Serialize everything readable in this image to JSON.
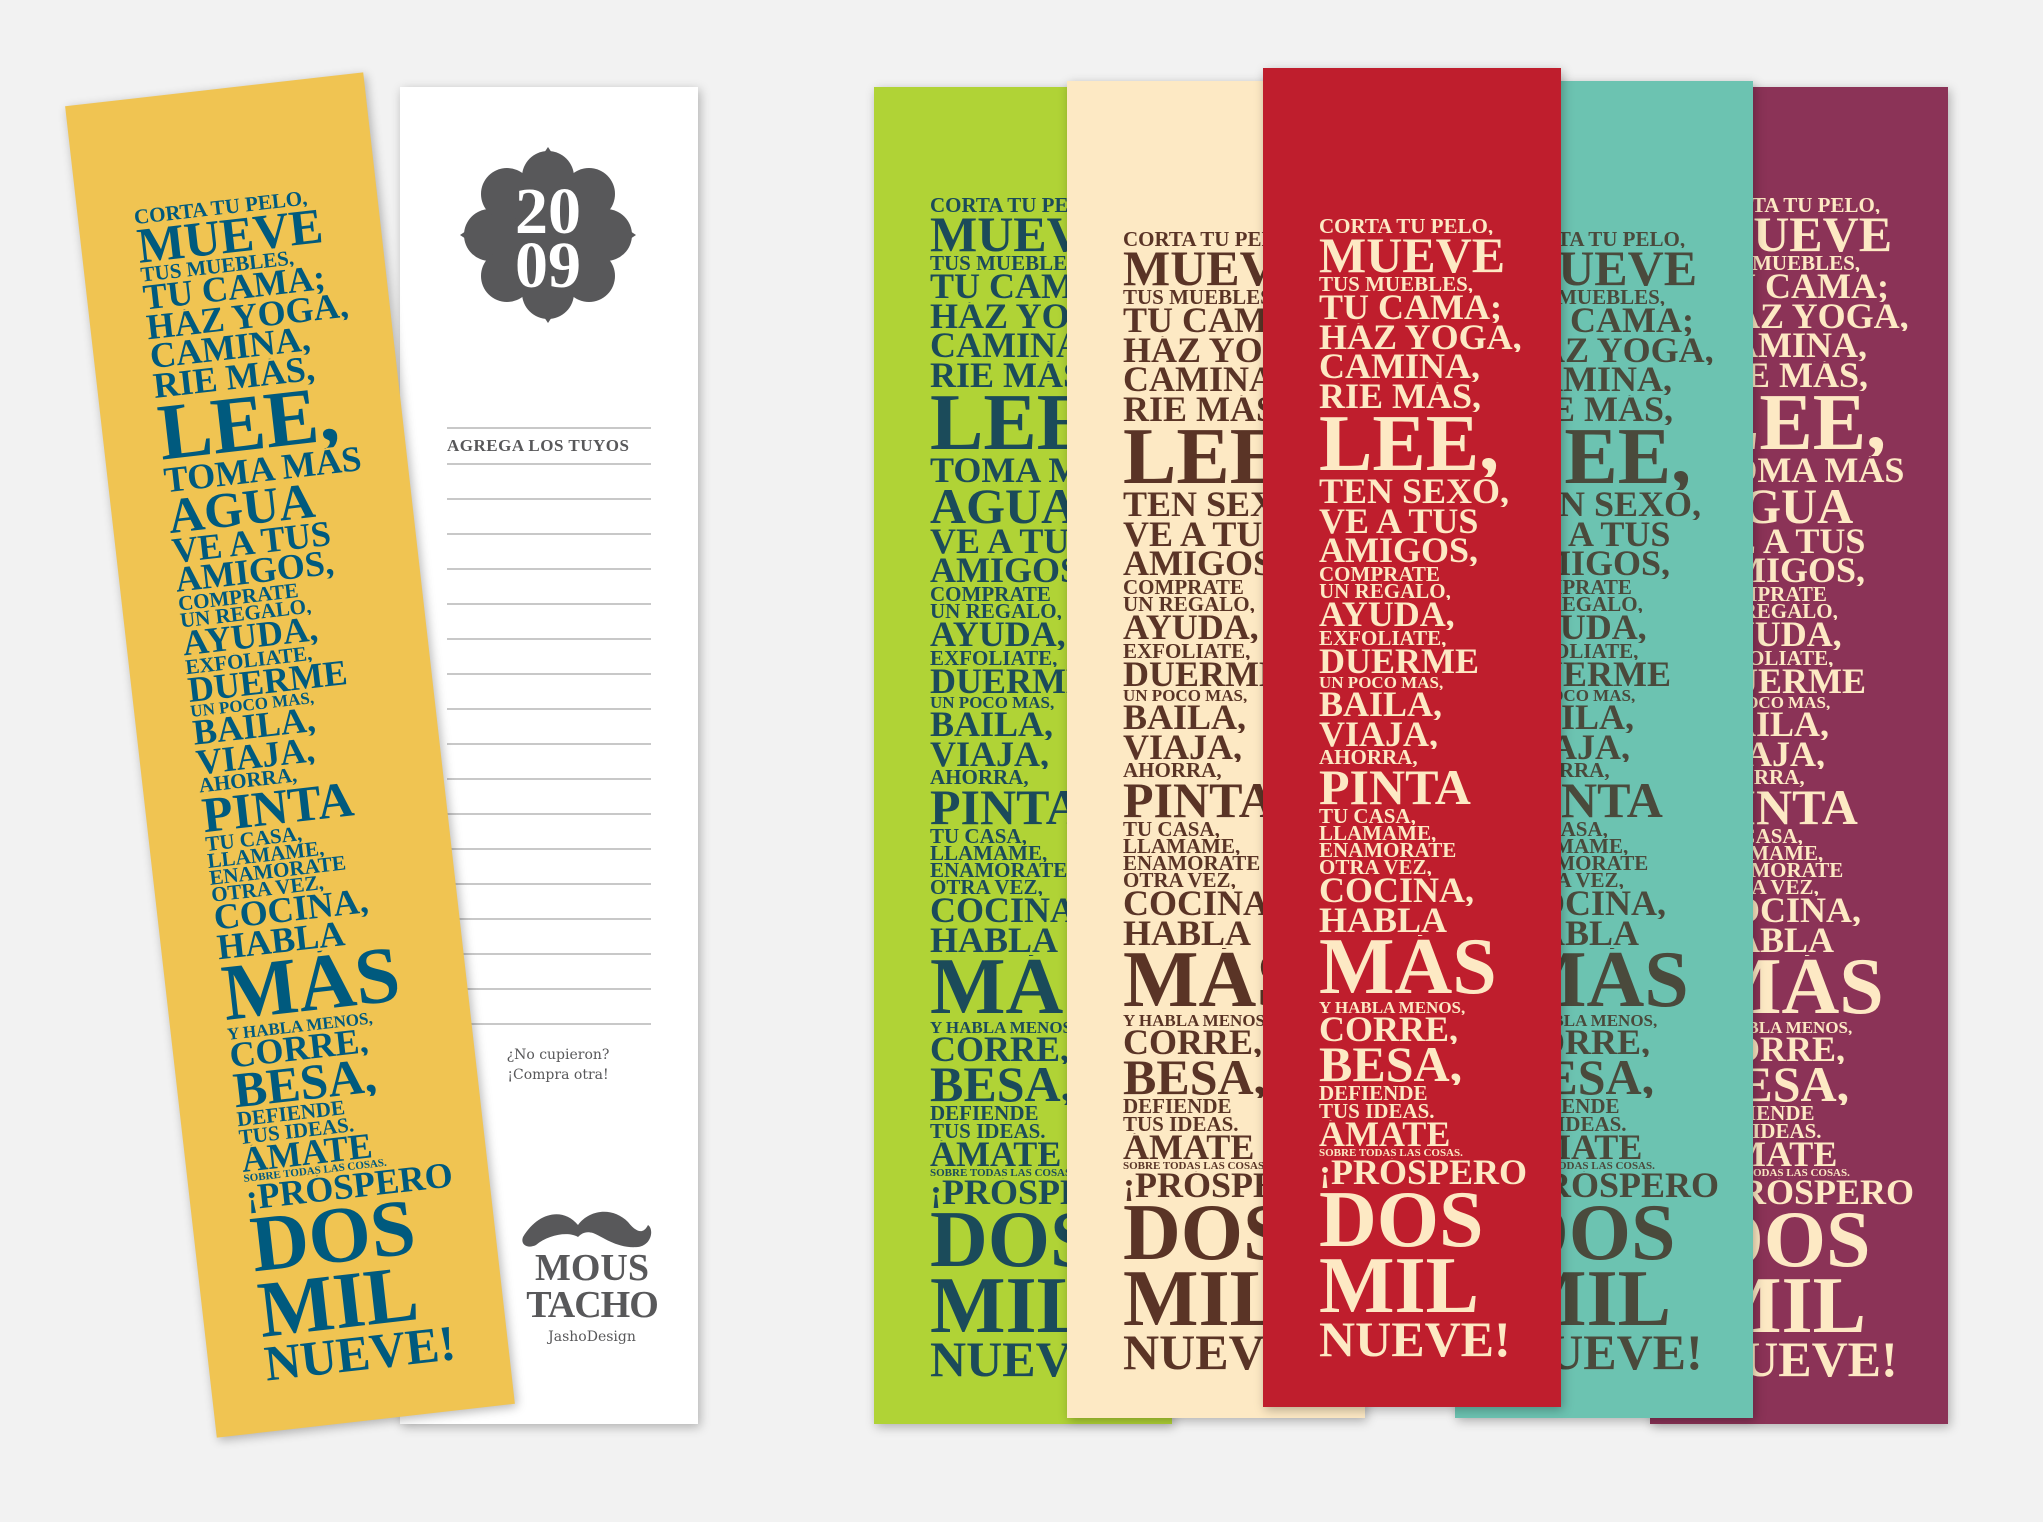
{
  "white_bookmark": {
    "badge": {
      "line1": "20",
      "line2": "09",
      "color": "#58585a"
    },
    "header": "AGREGA LOS TUYOS",
    "note_line1": "¿No cupieron?",
    "note_line2": "¡Compra otra!",
    "logo_line1": "MOUS",
    "logo_line2": "TACHO",
    "credit": "JashoDesign"
  },
  "variants": {
    "A": [
      [
        "CORTA TU PELO,",
        "s"
      ],
      [
        "MUEVE",
        "l"
      ],
      [
        "TUS MUEBLES,",
        "s"
      ],
      [
        "TU CAMA;",
        "m"
      ],
      [
        "HÁZ YOGA,",
        "m"
      ],
      [
        "CAMINA,",
        "m"
      ],
      [
        "RIE MÁS,",
        "m"
      ],
      [
        "LEE,",
        "xl"
      ],
      [
        "TOMA MÁS",
        "m"
      ],
      [
        "AGUA",
        "l"
      ],
      [
        "VE A TUS",
        "m"
      ],
      [
        "AMIGOS,",
        "m"
      ],
      [
        "CÓMPRATE",
        "s"
      ],
      [
        "UN REGALO,",
        "s"
      ],
      [
        "AYUDA,",
        "m"
      ],
      [
        "EXFÓLIATE,",
        "s"
      ],
      [
        "DUERME",
        "m"
      ],
      [
        "UN POCO MÁS,",
        "xs"
      ],
      [
        "BAILA,",
        "m"
      ],
      [
        "VIAJA,",
        "m"
      ],
      [
        "AHORRA,",
        "s"
      ],
      [
        "PINTA",
        "l"
      ],
      [
        "TU CASA,",
        "s"
      ],
      [
        "LLÁMAME,",
        "s"
      ],
      [
        "ENAMÓRATE",
        "s"
      ],
      [
        "OTRA VEZ,",
        "s"
      ],
      [
        "COCINA,",
        "m"
      ],
      [
        "HABLA",
        "m"
      ],
      [
        "MÁS",
        "xl"
      ],
      [
        "Y HABLA MENOS,",
        "xs"
      ],
      [
        "CORRE,",
        "m"
      ],
      [
        "BESA,",
        "l"
      ],
      [
        "DEFIENDE",
        "s"
      ],
      [
        "TUS IDEAS.",
        "s"
      ],
      [
        "ÁMATE",
        "m"
      ],
      [
        "SOBRE TODAS LAS COSAS.",
        "xxs"
      ],
      [
        "¡PRÓSPERO",
        "m"
      ],
      [
        "DOS",
        "xl"
      ],
      [
        "MIL",
        "xl"
      ],
      [
        "NUEVE!",
        "l"
      ]
    ],
    "B": [
      [
        "CORTA TU PELO,",
        "s"
      ],
      [
        "MUEVE",
        "l"
      ],
      [
        "TUS MUEBLES,",
        "s"
      ],
      [
        "TU CAMA;",
        "m"
      ],
      [
        "HÁZ YOGA,",
        "m"
      ],
      [
        "CAMINA,",
        "m"
      ],
      [
        "RIE MÁS,",
        "m"
      ],
      [
        "LEE,",
        "xl"
      ],
      [
        "TEN SEXO,",
        "m"
      ],
      [
        "VE A TUS",
        "m"
      ],
      [
        "AMIGOS,",
        "m"
      ],
      [
        "CÓMPRATE",
        "s"
      ],
      [
        "UN REGALO,",
        "s"
      ],
      [
        "AYUDA,",
        "m"
      ],
      [
        "EXFÓLIATE,",
        "s"
      ],
      [
        "DUERME",
        "m"
      ],
      [
        "UN POCO MÁS,",
        "xs"
      ],
      [
        "BAILA,",
        "m"
      ],
      [
        "VIAJA,",
        "m"
      ],
      [
        "AHORRA,",
        "s"
      ],
      [
        "PINTA",
        "l"
      ],
      [
        "TU CASA,",
        "s"
      ],
      [
        "LLÁMAME,",
        "s"
      ],
      [
        "ENAMÓRATE",
        "s"
      ],
      [
        "OTRA VEZ,",
        "s"
      ],
      [
        "COCINA,",
        "m"
      ],
      [
        "HABLA",
        "m"
      ],
      [
        "MÁS",
        "xl"
      ],
      [
        "Y HABLA MENOS,",
        "xs"
      ],
      [
        "CORRE,",
        "m"
      ],
      [
        "BESA,",
        "l"
      ],
      [
        "DEFIENDE",
        "s"
      ],
      [
        "TUS IDEAS.",
        "s"
      ],
      [
        "ÁMATE",
        "m"
      ],
      [
        "SOBRE TODAS LAS COSAS.",
        "xxs"
      ],
      [
        "¡PRÓSPERO",
        "m"
      ],
      [
        "DOS",
        "xl"
      ],
      [
        "MIL",
        "xl"
      ],
      [
        "NUEVE!",
        "l"
      ]
    ]
  },
  "bookmarks": [
    {
      "id": "yellow",
      "variant": "A",
      "bg": "#f0c452",
      "fg": "#005a7e"
    },
    {
      "id": "green",
      "variant": "A",
      "bg": "#b0d336",
      "fg": "#1b4b5a"
    },
    {
      "id": "cream",
      "variant": "B",
      "bg": "#fde9c4",
      "fg": "#5a3426"
    },
    {
      "id": "red",
      "variant": "B",
      "bg": "#bf1e2d",
      "fg": "#fde9c4"
    },
    {
      "id": "teal",
      "variant": "B",
      "bg": "#6cc3b1",
      "fg": "#4a4a3c"
    },
    {
      "id": "purple",
      "variant": "A",
      "bg": "#8b3357",
      "fg": "#fde9c4"
    }
  ]
}
